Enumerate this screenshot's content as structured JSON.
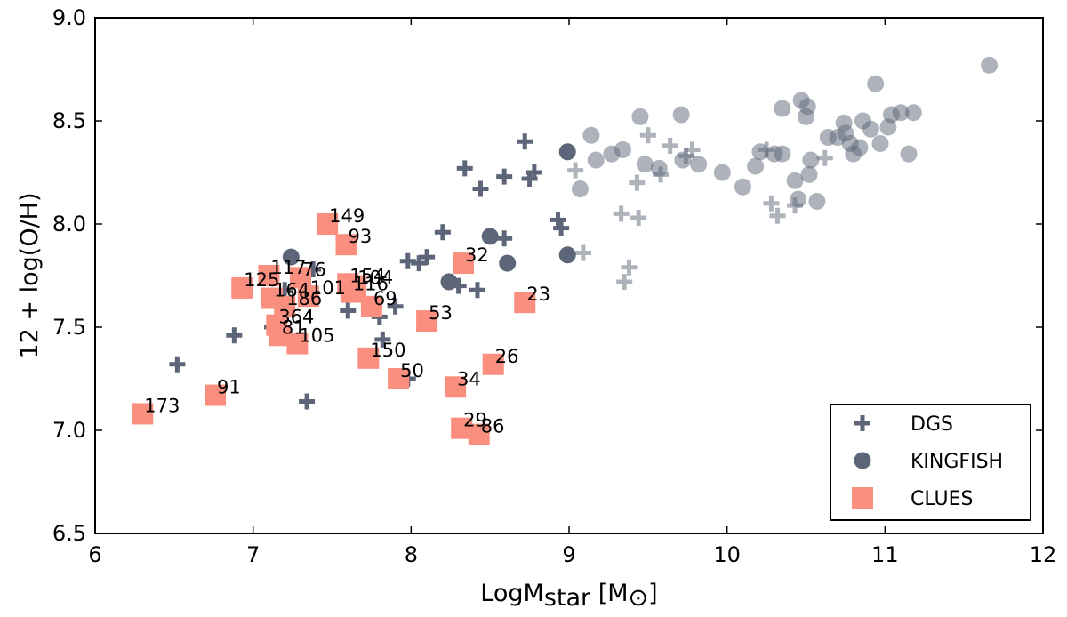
{
  "chart_data": {
    "type": "scatter",
    "xlabel": "LogMstar [M⊙]",
    "xlabel_parts": {
      "base": "LogM",
      "sub": "star",
      "unit_open": " [M",
      "unit_sub": "⊙",
      "unit_close": "]"
    },
    "ylabel": "12 + log(O/H)",
    "xlim": [
      6,
      12
    ],
    "ylim": [
      6.5,
      9.0
    ],
    "xticks": [
      6,
      7,
      8,
      9,
      10,
      11,
      12
    ],
    "yticks": [
      6.5,
      7.0,
      7.5,
      8.0,
      8.5,
      9.0
    ],
    "xtick_labels": [
      "6",
      "7",
      "8",
      "9",
      "10",
      "11",
      "12"
    ],
    "ytick_labels": [
      "6.5",
      "7.0",
      "7.5",
      "8.0",
      "8.5",
      "9.0"
    ],
    "legend_position": "bottom-right",
    "colors": {
      "dgs": "#5c6678",
      "kingfish": "#5c6678",
      "clues": "#fa8f80"
    },
    "series": [
      {
        "name": "DGS",
        "legend_label": "DGS",
        "marker": "plus",
        "points": [
          {
            "x": 6.52,
            "y": 7.32,
            "a": 1.0
          },
          {
            "x": 6.88,
            "y": 7.46,
            "a": 1.0
          },
          {
            "x": 7.34,
            "y": 7.14,
            "a": 1.0
          },
          {
            "x": 7.12,
            "y": 7.5,
            "a": 1.0
          },
          {
            "x": 7.2,
            "y": 7.68,
            "a": 1.0
          },
          {
            "x": 7.38,
            "y": 7.78,
            "a": 1.0
          },
          {
            "x": 7.6,
            "y": 7.58,
            "a": 1.0
          },
          {
            "x": 7.8,
            "y": 7.55,
            "a": 1.0
          },
          {
            "x": 7.9,
            "y": 7.6,
            "a": 1.0
          },
          {
            "x": 7.82,
            "y": 7.44,
            "a": 1.0
          },
          {
            "x": 7.98,
            "y": 7.25,
            "a": 1.0
          },
          {
            "x": 7.98,
            "y": 7.82,
            "a": 1.0
          },
          {
            "x": 8.05,
            "y": 7.81,
            "a": 1.0
          },
          {
            "x": 8.1,
            "y": 7.84,
            "a": 1.0
          },
          {
            "x": 8.2,
            "y": 7.96,
            "a": 1.0
          },
          {
            "x": 8.3,
            "y": 7.7,
            "a": 1.0
          },
          {
            "x": 8.42,
            "y": 7.68,
            "a": 1.0
          },
          {
            "x": 8.34,
            "y": 8.27,
            "a": 1.0
          },
          {
            "x": 8.44,
            "y": 8.17,
            "a": 1.0
          },
          {
            "x": 8.59,
            "y": 8.23,
            "a": 1.0
          },
          {
            "x": 8.59,
            "y": 7.93,
            "a": 1.0
          },
          {
            "x": 8.72,
            "y": 8.4,
            "a": 1.0
          },
          {
            "x": 8.75,
            "y": 8.22,
            "a": 1.0
          },
          {
            "x": 8.78,
            "y": 8.25,
            "a": 1.0
          },
          {
            "x": 8.93,
            "y": 8.02,
            "a": 1.0
          },
          {
            "x": 8.95,
            "y": 7.98,
            "a": 1.0
          },
          {
            "x": 9.04,
            "y": 8.26,
            "a": 0.5
          },
          {
            "x": 9.09,
            "y": 7.86,
            "a": 0.5
          },
          {
            "x": 9.33,
            "y": 8.05,
            "a": 0.5
          },
          {
            "x": 9.35,
            "y": 7.72,
            "a": 0.5
          },
          {
            "x": 9.38,
            "y": 7.79,
            "a": 0.5
          },
          {
            "x": 9.44,
            "y": 8.03,
            "a": 0.5
          },
          {
            "x": 9.43,
            "y": 8.2,
            "a": 0.5
          },
          {
            "x": 9.5,
            "y": 8.43,
            "a": 0.5
          },
          {
            "x": 9.58,
            "y": 8.24,
            "a": 0.5
          },
          {
            "x": 9.64,
            "y": 8.38,
            "a": 0.5
          },
          {
            "x": 9.74,
            "y": 8.33,
            "a": 0.5
          },
          {
            "x": 9.78,
            "y": 8.36,
            "a": 0.5
          },
          {
            "x": 10.25,
            "y": 8.36,
            "a": 0.5
          },
          {
            "x": 10.28,
            "y": 8.1,
            "a": 0.5
          },
          {
            "x": 10.32,
            "y": 8.04,
            "a": 0.5
          },
          {
            "x": 10.43,
            "y": 8.09,
            "a": 0.5
          },
          {
            "x": 10.62,
            "y": 8.32,
            "a": 0.5
          }
        ]
      },
      {
        "name": "KINGFISH",
        "legend_label": "KINGFISH",
        "marker": "circle",
        "points": [
          {
            "x": 7.24,
            "y": 7.84,
            "a": 1.0
          },
          {
            "x": 8.24,
            "y": 7.72,
            "a": 1.0
          },
          {
            "x": 8.5,
            "y": 7.94,
            "a": 1.0
          },
          {
            "x": 8.61,
            "y": 7.81,
            "a": 1.0
          },
          {
            "x": 8.99,
            "y": 8.35,
            "a": 1.0
          },
          {
            "x": 8.99,
            "y": 7.85,
            "a": 1.0
          },
          {
            "x": 9.07,
            "y": 8.17,
            "a": 0.5
          },
          {
            "x": 9.14,
            "y": 8.43,
            "a": 0.5
          },
          {
            "x": 9.17,
            "y": 8.31,
            "a": 0.5
          },
          {
            "x": 9.27,
            "y": 8.34,
            "a": 0.5
          },
          {
            "x": 9.34,
            "y": 8.36,
            "a": 0.5
          },
          {
            "x": 9.45,
            "y": 8.52,
            "a": 0.5
          },
          {
            "x": 9.48,
            "y": 8.29,
            "a": 0.5
          },
          {
            "x": 9.57,
            "y": 8.27,
            "a": 0.5
          },
          {
            "x": 9.71,
            "y": 8.53,
            "a": 0.5
          },
          {
            "x": 9.72,
            "y": 8.31,
            "a": 0.5
          },
          {
            "x": 9.82,
            "y": 8.29,
            "a": 0.5
          },
          {
            "x": 9.97,
            "y": 8.25,
            "a": 0.5
          },
          {
            "x": 10.1,
            "y": 8.18,
            "a": 0.5
          },
          {
            "x": 10.18,
            "y": 8.28,
            "a": 0.5
          },
          {
            "x": 10.21,
            "y": 8.35,
            "a": 0.5
          },
          {
            "x": 10.3,
            "y": 8.34,
            "a": 0.5
          },
          {
            "x": 10.35,
            "y": 8.56,
            "a": 0.5
          },
          {
            "x": 10.35,
            "y": 8.34,
            "a": 0.5
          },
          {
            "x": 10.43,
            "y": 8.21,
            "a": 0.5
          },
          {
            "x": 10.45,
            "y": 8.12,
            "a": 0.5
          },
          {
            "x": 10.47,
            "y": 8.6,
            "a": 0.5
          },
          {
            "x": 10.5,
            "y": 8.52,
            "a": 0.5
          },
          {
            "x": 10.51,
            "y": 8.57,
            "a": 0.5
          },
          {
            "x": 10.53,
            "y": 8.31,
            "a": 0.5
          },
          {
            "x": 10.52,
            "y": 8.24,
            "a": 0.5
          },
          {
            "x": 10.57,
            "y": 8.11,
            "a": 0.5
          },
          {
            "x": 10.64,
            "y": 8.42,
            "a": 0.5
          },
          {
            "x": 10.7,
            "y": 8.42,
            "a": 0.5
          },
          {
            "x": 10.74,
            "y": 8.49,
            "a": 0.5
          },
          {
            "x": 10.75,
            "y": 8.44,
            "a": 0.5
          },
          {
            "x": 10.78,
            "y": 8.39,
            "a": 0.5
          },
          {
            "x": 10.8,
            "y": 8.34,
            "a": 0.5
          },
          {
            "x": 10.84,
            "y": 8.37,
            "a": 0.5
          },
          {
            "x": 10.86,
            "y": 8.5,
            "a": 0.5
          },
          {
            "x": 10.91,
            "y": 8.46,
            "a": 0.5
          },
          {
            "x": 10.94,
            "y": 8.68,
            "a": 0.5
          },
          {
            "x": 10.97,
            "y": 8.39,
            "a": 0.5
          },
          {
            "x": 11.02,
            "y": 8.47,
            "a": 0.5
          },
          {
            "x": 11.04,
            "y": 8.53,
            "a": 0.5
          },
          {
            "x": 11.1,
            "y": 8.54,
            "a": 0.5
          },
          {
            "x": 11.15,
            "y": 8.34,
            "a": 0.5
          },
          {
            "x": 11.18,
            "y": 8.54,
            "a": 0.5
          },
          {
            "x": 11.66,
            "y": 8.77,
            "a": 0.5
          }
        ]
      },
      {
        "name": "CLUES",
        "legend_label": "CLUES",
        "marker": "square",
        "points": [
          {
            "x": 6.3,
            "y": 7.08,
            "label": "173"
          },
          {
            "x": 6.76,
            "y": 7.17,
            "label": "91"
          },
          {
            "x": 6.93,
            "y": 7.69,
            "label": "125"
          },
          {
            "x": 7.1,
            "y": 7.75,
            "label": "117"
          },
          {
            "x": 7.12,
            "y": 7.64,
            "label": "164"
          },
          {
            "x": 7.15,
            "y": 7.51,
            "label": "364"
          },
          {
            "x": 7.17,
            "y": 7.46,
            "label": "81"
          },
          {
            "x": 7.2,
            "y": 7.6,
            "label": "186"
          },
          {
            "x": 7.28,
            "y": 7.42,
            "label": "105"
          },
          {
            "x": 7.3,
            "y": 7.74,
            "label": "76"
          },
          {
            "x": 7.35,
            "y": 7.65,
            "label": "101"
          },
          {
            "x": 7.47,
            "y": 8.0,
            "label": "149"
          },
          {
            "x": 7.59,
            "y": 7.9,
            "label": "93"
          },
          {
            "x": 7.6,
            "y": 7.71,
            "label": "154"
          },
          {
            "x": 7.62,
            "y": 7.67,
            "label": "116"
          },
          {
            "x": 7.65,
            "y": 7.7,
            "label": "104"
          },
          {
            "x": 7.75,
            "y": 7.6,
            "label": "69"
          },
          {
            "x": 7.73,
            "y": 7.35,
            "label": "150"
          },
          {
            "x": 7.92,
            "y": 7.25,
            "label": "50"
          },
          {
            "x": 8.1,
            "y": 7.53,
            "label": "53"
          },
          {
            "x": 8.28,
            "y": 7.21,
            "label": "34"
          },
          {
            "x": 8.32,
            "y": 7.01,
            "label": "29"
          },
          {
            "x": 8.33,
            "y": 7.81,
            "label": "32"
          },
          {
            "x": 8.43,
            "y": 6.98,
            "label": "86"
          },
          {
            "x": 8.52,
            "y": 7.32,
            "label": "26"
          },
          {
            "x": 8.72,
            "y": 7.62,
            "label": "23"
          }
        ]
      }
    ]
  }
}
